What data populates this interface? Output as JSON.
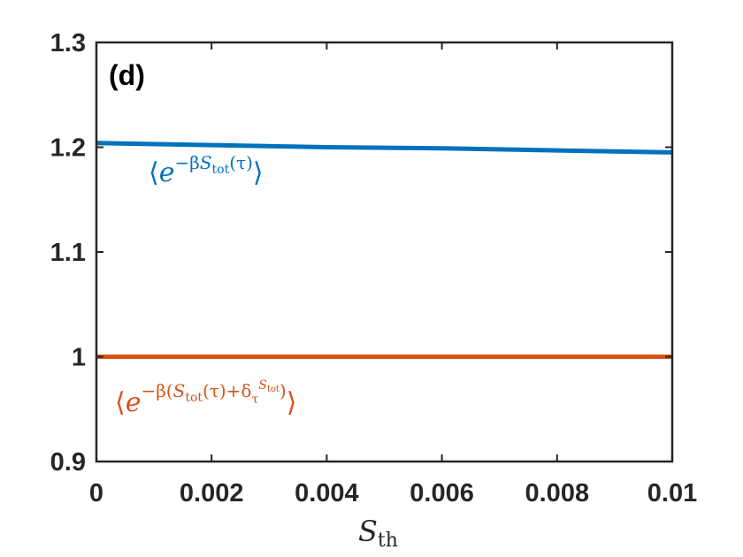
{
  "chart_data": {
    "type": "line",
    "panel_label": "(d)",
    "xlabel": "S_th",
    "xlabel_main": "S",
    "xlabel_sub": "th",
    "ylabel": "",
    "xlim": [
      0,
      0.01
    ],
    "ylim": [
      0.9,
      1.3
    ],
    "x_ticks": [
      0,
      0.002,
      0.004,
      0.006,
      0.008,
      0.01
    ],
    "x_tick_labels": [
      "0",
      "0.002",
      "0.004",
      "0.006",
      "0.008",
      "0.01"
    ],
    "y_ticks": [
      0.9,
      1,
      1.1,
      1.2,
      1.3
    ],
    "y_tick_labels": [
      "0.9",
      "1",
      "1.1",
      "1.2",
      "1.3"
    ],
    "grid": false,
    "box": true,
    "series": [
      {
        "name": "⟨e^{-βS_tot(τ)}⟩",
        "color": "#0072BD",
        "x": [
          0,
          0.002,
          0.004,
          0.006,
          0.008,
          0.01
        ],
        "values": [
          1.204,
          1.202,
          1.2,
          1.199,
          1.197,
          1.195
        ]
      },
      {
        "name": "⟨e^{-β(S_tot(τ)+δ_τ^{S_tot})}⟩",
        "color": "#D95319",
        "x": [
          0,
          0.002,
          0.004,
          0.006,
          0.008,
          0.01
        ],
        "values": [
          1.0,
          1.0,
          1.0,
          1.0,
          1.0,
          1.0
        ]
      }
    ]
  }
}
